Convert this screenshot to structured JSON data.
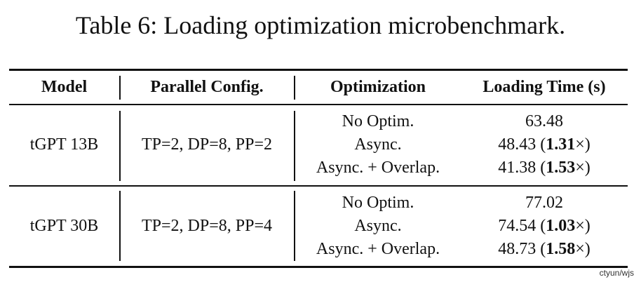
{
  "caption": "Table 6: Loading optimization microbenchmark.",
  "table": {
    "headers": [
      "Model",
      "Parallel Config.",
      "Optimization",
      "Loading Time (s)"
    ],
    "groups": [
      {
        "model": "tGPT 13B",
        "config": "TP=2, DP=8, PP=2",
        "rows": [
          {
            "optimization": "No Optim.",
            "time": "63.48",
            "speedup": ""
          },
          {
            "optimization": "Async.",
            "time": "48.43",
            "speedup": "1.31"
          },
          {
            "optimization": "Async. + Overlap.",
            "time": "41.38",
            "speedup": "1.53"
          }
        ]
      },
      {
        "model": "tGPT 30B",
        "config": "TP=2, DP=8, PP=4",
        "rows": [
          {
            "optimization": "No Optim.",
            "time": "77.02",
            "speedup": ""
          },
          {
            "optimization": "Async.",
            "time": "74.54",
            "speedup": "1.03"
          },
          {
            "optimization": "Async. + Overlap.",
            "time": "48.73",
            "speedup": "1.58"
          }
        ]
      }
    ]
  },
  "watermark": "ctyun/wjs"
}
